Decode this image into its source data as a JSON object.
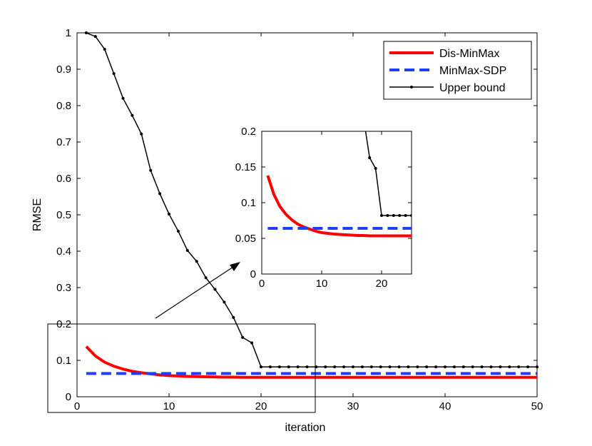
{
  "chart_data": {
    "type": "line",
    "title": "",
    "xlabel": "iteration",
    "ylabel": "RMSE",
    "xlim": [
      0,
      50
    ],
    "ylim": [
      0,
      1
    ],
    "xticks": [
      "0",
      "10",
      "20",
      "30",
      "40",
      "50"
    ],
    "yticks": [
      "0",
      "0.1",
      "0.2",
      "0.3",
      "0.4",
      "0.5",
      "0.6",
      "0.7",
      "0.8",
      "0.9",
      "1"
    ],
    "legend_position": "top-right",
    "grid": false,
    "series": [
      {
        "name": "Dis-MinMax",
        "color": "#ff0000",
        "style": "solid",
        "x": [
          1,
          2,
          3,
          4,
          5,
          6,
          7,
          8,
          9,
          10,
          11,
          12,
          13,
          14,
          15,
          16,
          17,
          18,
          19,
          20,
          21,
          22,
          23,
          24,
          25,
          26,
          27,
          28,
          29,
          30,
          31,
          32,
          33,
          34,
          35,
          36,
          37,
          38,
          39,
          40,
          41,
          42,
          43,
          44,
          45,
          46,
          47,
          48,
          49,
          50
        ],
        "values": [
          0.138,
          0.112,
          0.095,
          0.084,
          0.076,
          0.07,
          0.066,
          0.063,
          0.06,
          0.058,
          0.057,
          0.056,
          0.0555,
          0.055,
          0.0545,
          0.054,
          0.054,
          0.0535,
          0.0535,
          0.0535,
          0.0535,
          0.0535,
          0.0535,
          0.0535,
          0.0535,
          0.0535,
          0.0535,
          0.0535,
          0.0535,
          0.0535,
          0.0535,
          0.0535,
          0.0535,
          0.0535,
          0.0535,
          0.0535,
          0.0535,
          0.0535,
          0.0535,
          0.0535,
          0.0535,
          0.0535,
          0.0535,
          0.0535,
          0.0535,
          0.0535,
          0.0535,
          0.0535,
          0.0535,
          0.0535
        ]
      },
      {
        "name": "MinMax-SDP",
        "color": "#1f3fff",
        "style": "dashed",
        "x": [
          1,
          50
        ],
        "values": [
          0.064,
          0.064
        ]
      },
      {
        "name": "Upper bound",
        "color": "#000000",
        "style": "solid-dots",
        "x": [
          1,
          2,
          3,
          4,
          5,
          6,
          7,
          8,
          9,
          10,
          11,
          12,
          13,
          14,
          15,
          16,
          17,
          18,
          19,
          20,
          21,
          22,
          23,
          24,
          25,
          26,
          27,
          28,
          29,
          30,
          31,
          32,
          33,
          34,
          35,
          36,
          37,
          38,
          39,
          40,
          41,
          42,
          43,
          44,
          45,
          46,
          47,
          48,
          49,
          50
        ],
        "values": [
          1.0,
          0.99,
          0.955,
          0.888,
          0.82,
          0.773,
          0.722,
          0.622,
          0.558,
          0.502,
          0.455,
          0.402,
          0.372,
          0.327,
          0.295,
          0.26,
          0.218,
          0.163,
          0.148,
          0.082,
          0.082,
          0.082,
          0.082,
          0.082,
          0.082,
          0.082,
          0.082,
          0.082,
          0.082,
          0.082,
          0.082,
          0.082,
          0.082,
          0.082,
          0.082,
          0.082,
          0.082,
          0.082,
          0.082,
          0.082,
          0.082,
          0.082,
          0.082,
          0.082,
          0.082,
          0.082,
          0.082,
          0.082,
          0.082,
          0.082
        ]
      }
    ],
    "inset": {
      "xlim": [
        0,
        25
      ],
      "ylim": [
        0,
        0.2
      ],
      "xticks": [
        "0",
        "10",
        "20"
      ],
      "yticks": [
        "0",
        "0.05",
        "0.1",
        "0.15",
        "0.2"
      ]
    }
  }
}
